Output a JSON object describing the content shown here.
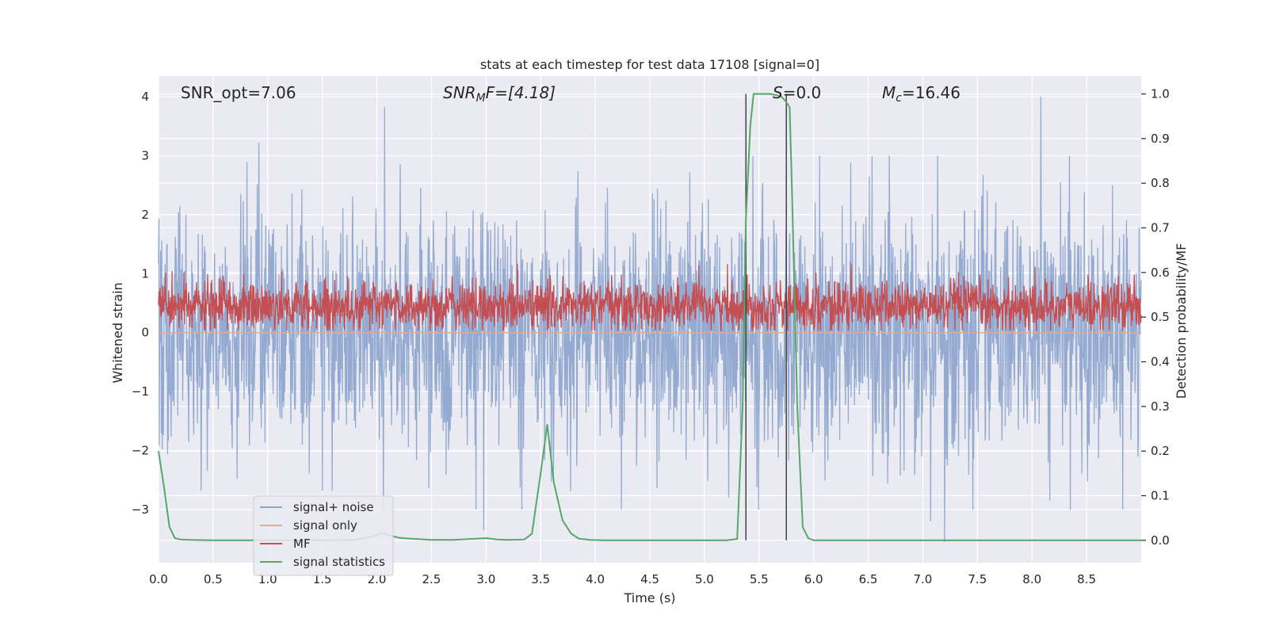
{
  "chart_data": {
    "type": "line",
    "title": "stats at each timestep for test data 17108 [signal=0]",
    "xlabel": "Time (s)",
    "ylabel": "Whitened strain",
    "y2label": "Detection probability/MF",
    "xlim": [
      0,
      9
    ],
    "ylim": [
      -3.9,
      4.35
    ],
    "y2lim": [
      -0.05,
      1.04
    ],
    "x_ticks": [
      0.0,
      0.5,
      1.0,
      1.5,
      2.0,
      2.5,
      3.0,
      3.5,
      4.0,
      4.5,
      5.0,
      5.5,
      6.0,
      6.5,
      7.0,
      7.5,
      8.0,
      8.5
    ],
    "x_tick_labels": [
      "0.0",
      "0.5",
      "1.0",
      "1.5",
      "2.0",
      "2.5",
      "3.0",
      "3.5",
      "4.0",
      "4.5",
      "5.0",
      "5.5",
      "6.0",
      "6.5",
      "7.0",
      "7.5",
      "8.0",
      "8.5"
    ],
    "y_ticks": [
      4,
      3,
      2,
      1,
      0,
      -1,
      -2,
      -3
    ],
    "y_tick_labels": [
      "4",
      "3",
      "2",
      "1",
      "0",
      "−1",
      "−2",
      "−3"
    ],
    "y2_ticks": [
      1.0,
      0.9,
      0.8,
      0.7,
      0.6,
      0.5,
      0.4,
      0.3,
      0.2,
      0.1,
      0.0
    ],
    "y2_tick_labels": [
      "1.0",
      "0.9",
      "0.8",
      "0.7",
      "0.6",
      "0.5",
      "0.4",
      "0.3",
      "0.2",
      "0.1",
      "0.0"
    ],
    "grid": true,
    "legend_position": "lower-left",
    "annotations": {
      "snr_opt": "SNR_opt=7.06",
      "snr_mf_main": "SNR",
      "snr_mf_sub": "M",
      "snr_mf_rest": "F=[4.18]",
      "s_main": "S",
      "s_rest": "=0.0",
      "mc_main": "M",
      "mc_sub": "c",
      "mc_rest": "=16.46"
    },
    "vertical_lines": [
      5.38,
      5.75
    ],
    "vertical_line_range": [
      0,
      1
    ],
    "series": [
      {
        "name": "signal+ noise",
        "color": "#8fa6cf",
        "axis": "left",
        "kind": "noise",
        "peaks": [
          {
            "x": 2.07,
            "y": 3.82
          },
          {
            "x": 0.92,
            "y": 3.22
          },
          {
            "x": 8.08,
            "y": 4.0
          },
          {
            "x": 7.2,
            "y": -3.55
          },
          {
            "x": 2.98,
            "y": -3.35
          },
          {
            "x": 8.83,
            "y": -3.0
          },
          {
            "x": 7.07,
            "y": -3.2
          }
        ],
        "envelope": [
          2.5,
          -2.5
        ]
      },
      {
        "name": "signal only",
        "color": "#e8a88a",
        "axis": "left",
        "kind": "flat",
        "value": 0.0
      },
      {
        "name": "MF",
        "color": "#c44e52",
        "axis": "right",
        "kind": "noise",
        "envelope": [
          0.62,
          0.47
        ],
        "mean": 0.525,
        "peaks": [
          {
            "x": 6.02,
            "y": 0.6
          }
        ]
      },
      {
        "name": "signal statistics",
        "color": "#55a868",
        "axis": "right",
        "kind": "line",
        "x": [
          0.0,
          0.05,
          0.1,
          0.15,
          0.2,
          0.3,
          0.5,
          1.0,
          1.5,
          1.8,
          1.95,
          2.05,
          2.1,
          2.2,
          2.3,
          2.5,
          2.7,
          3.0,
          3.1,
          3.2,
          3.35,
          3.42,
          3.5,
          3.56,
          3.62,
          3.7,
          3.78,
          3.85,
          3.95,
          4.1,
          4.5,
          5.0,
          5.2,
          5.3,
          5.35,
          5.38,
          5.42,
          5.45,
          5.5,
          5.6,
          5.7,
          5.74,
          5.78,
          5.8,
          5.85,
          5.9,
          5.95,
          6.0,
          6.5,
          7.0,
          8.0,
          9.0
        ],
        "y": [
          0.2,
          0.12,
          0.03,
          0.005,
          0.002,
          0.001,
          0.0,
          0.0,
          0.0,
          0.001,
          0.008,
          0.017,
          0.012,
          0.006,
          0.004,
          0.001,
          0.001,
          0.005,
          0.002,
          0.001,
          0.002,
          0.015,
          0.15,
          0.26,
          0.13,
          0.045,
          0.015,
          0.004,
          0.001,
          0.0,
          0.0,
          0.0,
          0.0,
          0.003,
          0.3,
          0.72,
          0.93,
          1.0,
          1.0,
          1.0,
          0.995,
          0.985,
          0.97,
          0.8,
          0.3,
          0.03,
          0.005,
          0.0,
          0.0,
          0.0,
          0.0,
          0.0
        ]
      }
    ]
  }
}
